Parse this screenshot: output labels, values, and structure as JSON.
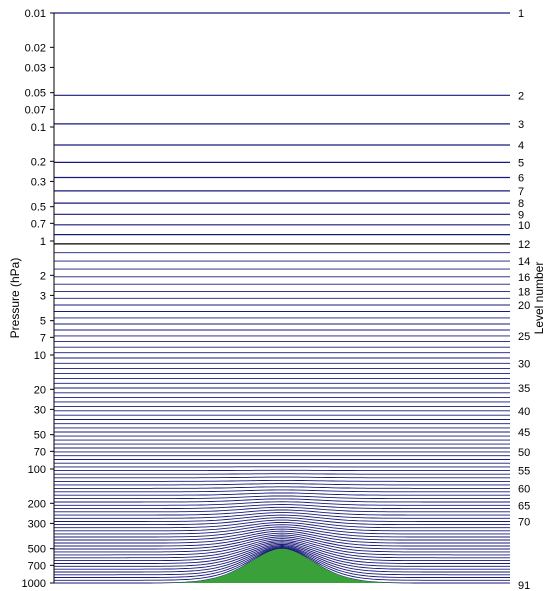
{
  "figure": {
    "y_axis_left": {
      "label": "Pressure (hPa)",
      "scale": "log",
      "range": [
        0.01,
        1000
      ],
      "ticks": [
        0.01,
        0.02,
        0.03,
        0.05,
        0.07,
        0.1,
        0.2,
        0.3,
        0.5,
        0.7,
        1,
        2,
        3,
        5,
        7,
        10,
        20,
        30,
        50,
        70,
        100,
        200,
        300,
        500,
        700,
        1000
      ],
      "tick_labels": [
        "0.01",
        "0.02",
        "0.03",
        "0.05",
        "0.07",
        "0.1",
        "0.2",
        "0.3",
        "0.5",
        "0.7",
        "1",
        "2",
        "3",
        "5",
        "7",
        "10",
        "20",
        "30",
        "50",
        "70",
        "100",
        "200",
        "300",
        "500",
        "700",
        "1000"
      ]
    },
    "y_axis_right": {
      "label": "Level number",
      "labeled_levels": [
        "1",
        "2",
        "3",
        "4",
        "5",
        "6",
        "7",
        "8",
        "9",
        "10",
        "12",
        "14",
        "16",
        "18",
        "20",
        "25",
        "30",
        "35",
        "40",
        "45",
        "50",
        "55",
        "60",
        "65",
        "70",
        "91"
      ]
    },
    "levels": {
      "count": 91,
      "line_color": "#1a1a7a",
      "level_12_color": "#000000"
    },
    "terrain": {
      "color": "#3aa03a",
      "peak_pressure": 500,
      "surface_pressure": 1000
    }
  }
}
